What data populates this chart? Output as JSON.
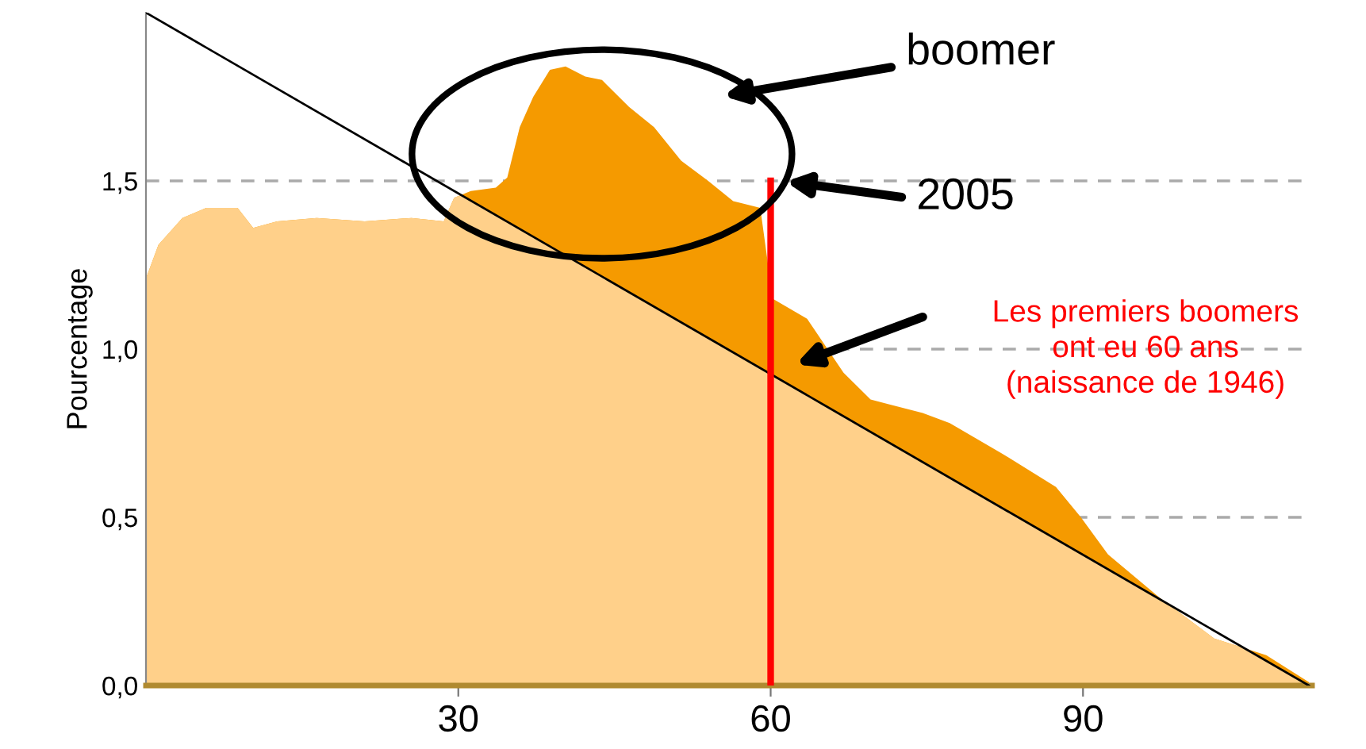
{
  "chart_data": {
    "type": "area",
    "ylabel": "Pourcentage",
    "x": [
      0,
      1.2,
      3.5,
      5.8,
      8.8,
      10.3,
      12.6,
      16.4,
      21,
      25.5,
      28.6,
      29.6,
      31.2,
      33.6,
      34.7,
      35.9,
      37.2,
      38.8,
      40.3,
      42.2,
      43.8,
      46.4,
      48.8,
      51.4,
      54,
      56.4,
      59,
      60.2,
      63.5,
      67,
      69.6,
      74.6,
      77.2,
      82.2,
      87.4,
      89.8,
      92.4,
      97.4,
      102.6,
      107.6,
      111.7
    ],
    "series": [
      {
        "color": "#f59a00",
        "values": [
          1.21,
          1.31,
          1.39,
          1.42,
          1.42,
          1.36,
          1.38,
          1.39,
          1.38,
          1.39,
          1.38,
          1.45,
          1.47,
          1.48,
          1.51,
          1.66,
          1.75,
          1.83,
          1.84,
          1.81,
          1.8,
          1.72,
          1.66,
          1.56,
          1.5,
          1.44,
          1.42,
          1.15,
          1.09,
          0.93,
          0.85,
          0.81,
          0.78,
          0.69,
          0.59,
          0.5,
          0.39,
          0.26,
          0.14,
          0.09,
          0.01
        ]
      },
      {
        "type": "line",
        "color": "#000000",
        "x": [
          0,
          111.7
        ],
        "values": [
          2.0,
          0
        ]
      }
    ],
    "xlim": [
      0,
      112
    ],
    "xticks": [
      30,
      60,
      90
    ],
    "ylim": [
      0,
      2.0
    ],
    "yticks": [
      {
        "value": 0,
        "label": "0,0"
      },
      {
        "value": 0.5,
        "label": "0,5"
      },
      {
        "value": 1.0,
        "label": "1,0"
      },
      {
        "value": 1.5,
        "label": "1,5"
      }
    ],
    "grid": "y",
    "ref_lines": [
      {
        "axis": "x",
        "value": 60,
        "color": "#ff0000"
      }
    ],
    "annotations": [
      "boomer",
      "2005",
      "Les premiers boomers\nont eu 60 ans\n(naissance de 1946)"
    ]
  }
}
